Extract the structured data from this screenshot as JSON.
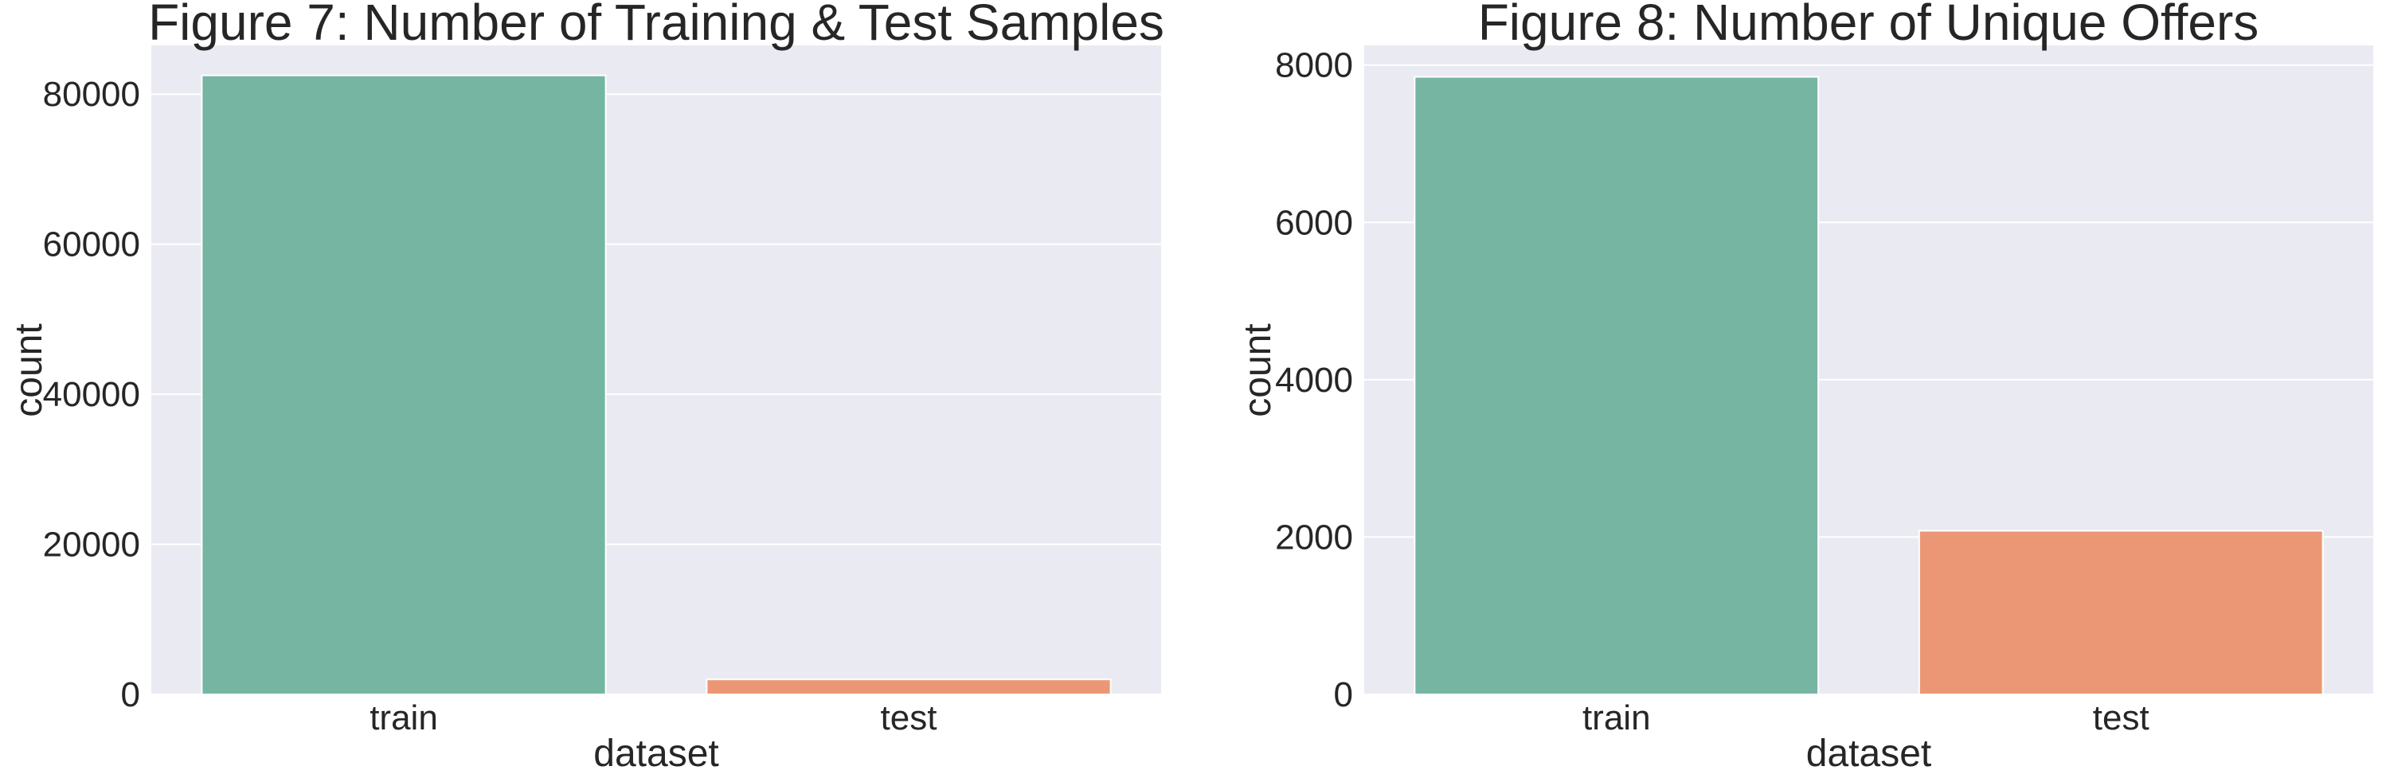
{
  "chart_data": [
    {
      "type": "bar",
      "title": "Figure 7: Number of Training & Test Samples",
      "xlabel": "dataset",
      "ylabel": "count",
      "categories": [
        "train",
        "test"
      ],
      "values": [
        82500,
        2000
      ],
      "colors": [
        "#75b5a1",
        "#eb9776"
      ],
      "ylim": [
        0,
        86500
      ],
      "yticks": [
        0,
        20000,
        40000,
        60000,
        80000
      ],
      "grid": true
    },
    {
      "type": "bar",
      "title": "Figure 8: Number of Unique Offers",
      "xlabel": "dataset",
      "ylabel": "count",
      "categories": [
        "train",
        "test"
      ],
      "values": [
        7850,
        2080
      ],
      "colors": [
        "#75b5a1",
        "#eb9776"
      ],
      "ylim": [
        0,
        8250
      ],
      "yticks": [
        0,
        2000,
        4000,
        6000,
        8000
      ],
      "grid": true
    }
  ],
  "colors": {
    "plot_background": "#eaeaf2",
    "gridline": "#ffffff",
    "text": "#262626"
  }
}
